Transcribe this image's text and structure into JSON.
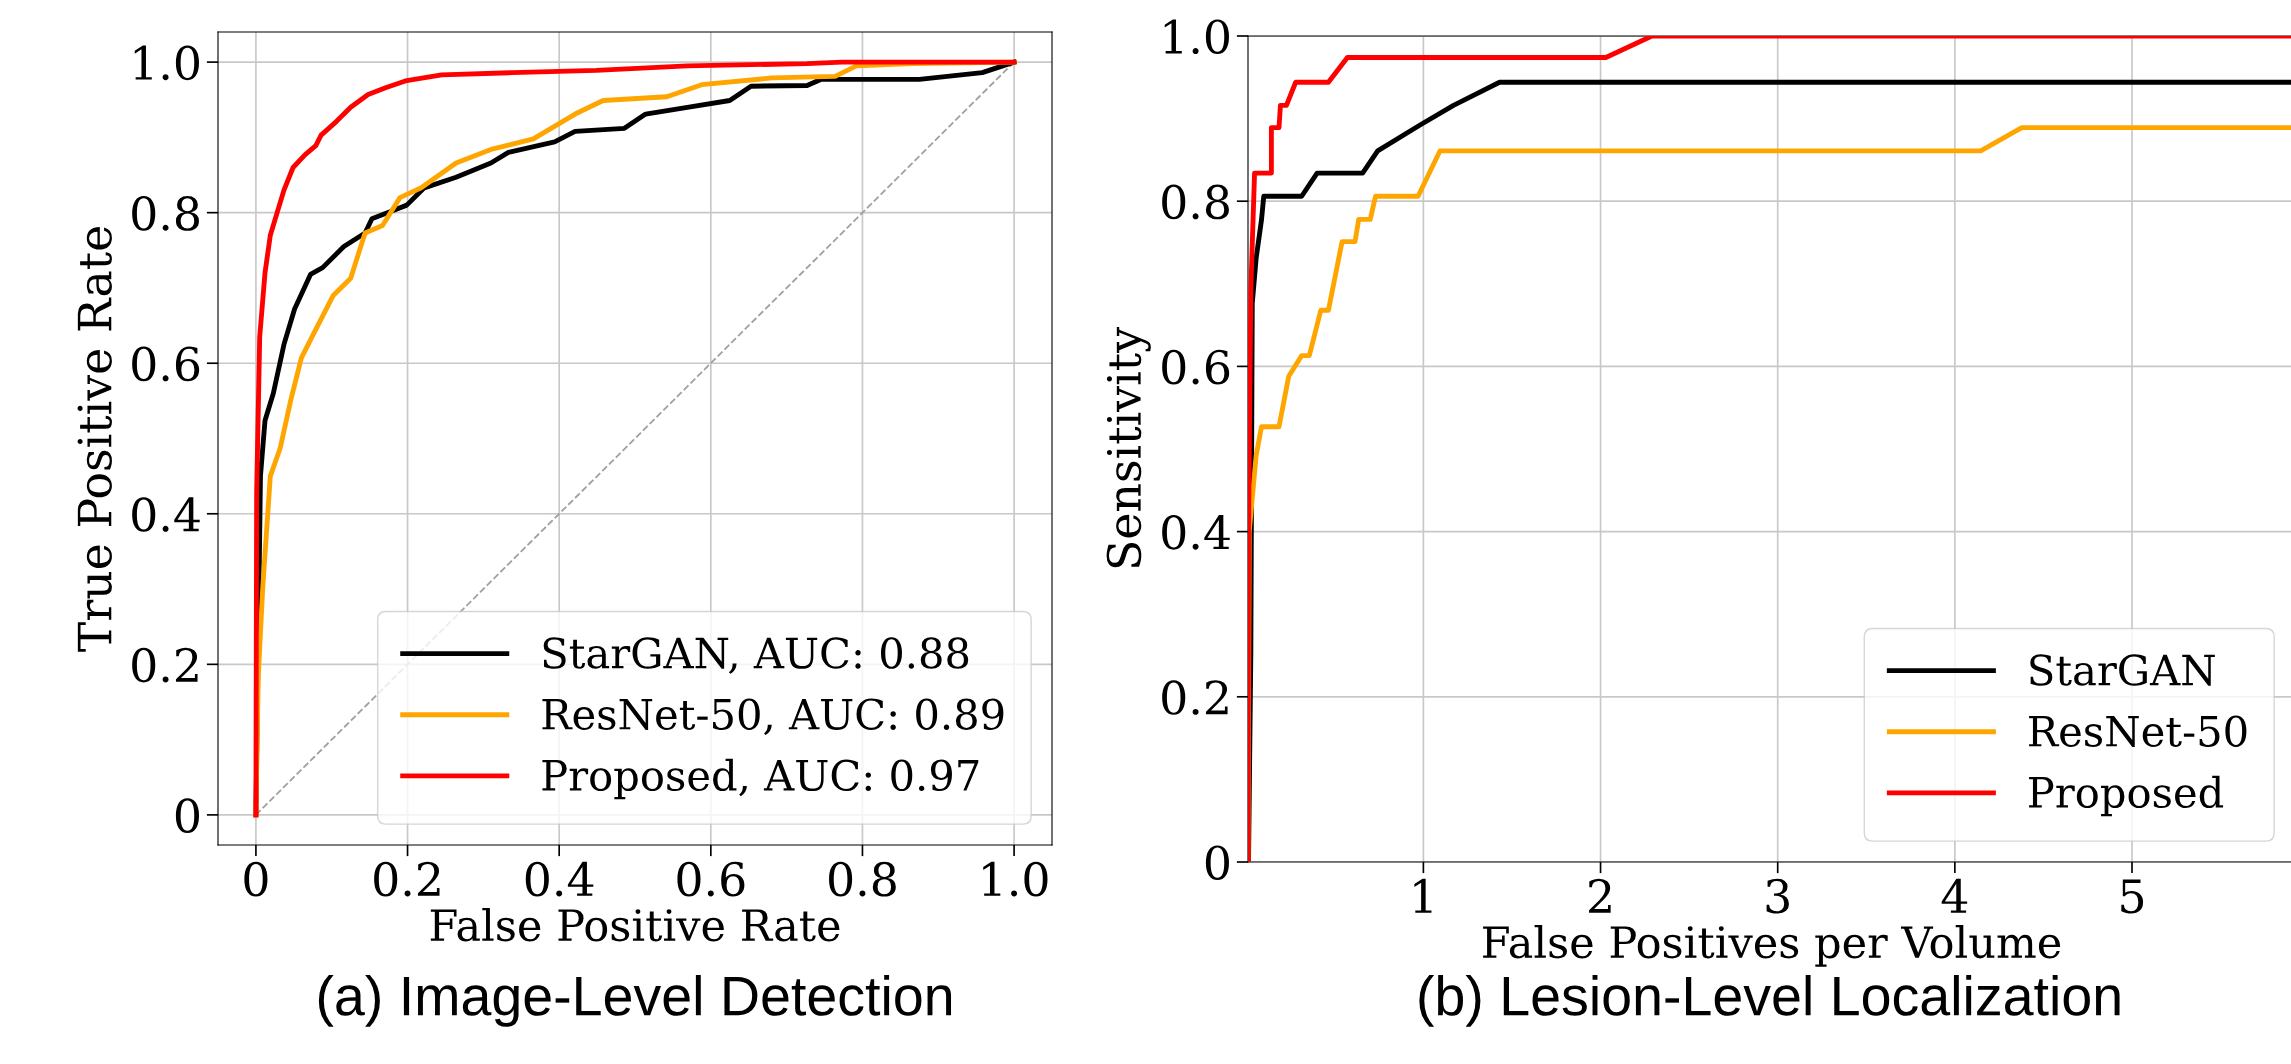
{
  "chart_data": [
    {
      "type": "line",
      "xlabel": "False Positive Rate",
      "ylabel": "True Positive Rate",
      "xlim": [
        -0.05,
        1.05
      ],
      "ylim": [
        -0.04,
        1.04
      ],
      "xticks": [
        0,
        0.2,
        0.4,
        0.6,
        0.8,
        {
          "value": 1,
          "label": "1.0"
        }
      ],
      "yticks": [
        0,
        0.2,
        0.4,
        0.6,
        0.8,
        {
          "value": 1,
          "label": "1.0"
        }
      ],
      "grid": true,
      "legend": "bottom right",
      "annotations": [
        "(a) Image-Level Detection"
      ],
      "series": [
        {
          "name": "StarGAN, AUC: 0.88",
          "color": "#000000",
          "x": [
            0,
            0.006,
            0.012,
            0.023,
            0.037,
            0.051,
            0.072,
            0.088,
            0.116,
            0.144,
            0.153,
            0.176,
            0.199,
            0.222,
            0.264,
            0.31,
            0.333,
            0.394,
            0.421,
            0.486,
            0.514,
            0.569,
            0.625,
            0.653,
            0.727,
            0.745,
            0.875,
            0.958,
            1
          ],
          "values": [
            0,
            0.45,
            0.524,
            0.56,
            0.625,
            0.672,
            0.718,
            0.727,
            0.755,
            0.773,
            0.792,
            0.801,
            0.81,
            0.833,
            0.847,
            0.866,
            0.88,
            0.894,
            0.908,
            0.912,
            0.931,
            0.94,
            0.949,
            0.968,
            0.969,
            0.977,
            0.977,
            0.986,
            1
          ]
        },
        {
          "name": "ResNet-50, AUC: 0.89",
          "color": "#ffa500",
          "x": [
            0,
            0.003,
            0.009,
            0.019,
            0.032,
            0.046,
            0.06,
            0.074,
            0.102,
            0.125,
            0.144,
            0.167,
            0.19,
            0.218,
            0.264,
            0.31,
            0.366,
            0.421,
            0.458,
            0.542,
            0.588,
            0.681,
            0.764,
            0.792,
            0.866,
            1
          ],
          "values": [
            0,
            0.181,
            0.302,
            0.45,
            0.487,
            0.551,
            0.607,
            0.635,
            0.69,
            0.713,
            0.773,
            0.783,
            0.82,
            0.833,
            0.866,
            0.884,
            0.898,
            0.931,
            0.949,
            0.954,
            0.97,
            0.979,
            0.981,
            0.995,
            0.998,
            1
          ]
        },
        {
          "name": "Proposed, AUC: 0.97",
          "color": "#ff0000",
          "x": [
            0,
            0.001,
            0.005,
            0.012,
            0.019,
            0.028,
            0.037,
            0.049,
            0.065,
            0.079,
            0.086,
            0.106,
            0.125,
            0.148,
            0.171,
            0.197,
            0.245,
            0.338,
            0.449,
            0.569,
            0.727,
            0.773,
            1
          ],
          "values": [
            0,
            0.43,
            0.635,
            0.72,
            0.77,
            0.8,
            0.83,
            0.86,
            0.877,
            0.889,
            0.903,
            0.921,
            0.94,
            0.957,
            0.966,
            0.975,
            0.983,
            0.986,
            0.989,
            0.995,
            0.998,
            1,
            1
          ]
        },
        {
          "color": "#a0a0a0",
          "line_style": "dashed",
          "x": [
            0,
            1
          ],
          "values": [
            0,
            1
          ]
        }
      ]
    },
    {
      "type": "line",
      "xlabel": "False Positives per Volume",
      "ylabel": "Sensitivity",
      "xlim": [
        0.01,
        5.92
      ],
      "ylim": [
        0,
        1
      ],
      "xticks": [
        1,
        2,
        3,
        4,
        5
      ],
      "yticks": [
        0,
        0.2,
        0.4,
        0.6,
        0.8,
        {
          "value": 1,
          "label": "1.0"
        }
      ],
      "grid": true,
      "legend": "bottom right",
      "annotations": [
        "(b) Lesion-Level Localization"
      ],
      "series": [
        {
          "name": "StarGAN",
          "color": "#000000",
          "x": [
            0.013,
            0.026,
            0.034,
            0.056,
            0.086,
            0.099,
            0.313,
            0.4,
            0.657,
            0.742,
            0.979,
            1.17,
            1.43,
            5.92
          ],
          "values": [
            0,
            0.253,
            0.676,
            0.731,
            0.777,
            0.806,
            0.806,
            0.834,
            0.834,
            0.861,
            0.892,
            0.916,
            0.944,
            0.944
          ]
        },
        {
          "name": "ResNet-50",
          "color": "#ffa500",
          "x": [
            0.01,
            0.017,
            0.056,
            0.086,
            0.185,
            0.24,
            0.313,
            0.356,
            0.421,
            0.464,
            0.541,
            0.614,
            0.635,
            0.7,
            0.73,
            0.97,
            1.094,
            4.146,
            4.378,
            5.92
          ],
          "values": [
            0,
            0.4,
            0.492,
            0.527,
            0.527,
            0.588,
            0.613,
            0.613,
            0.668,
            0.668,
            0.751,
            0.751,
            0.778,
            0.778,
            0.806,
            0.806,
            0.861,
            0.861,
            0.889,
            0.889
          ]
        },
        {
          "name": "Proposed",
          "color": "#ff0000",
          "x": [
            0.01,
            0.013,
            0.026,
            0.047,
            0.142,
            0.142,
            0.185,
            0.193,
            0.227,
            0.279,
            0.464,
            0.571,
            2.03,
            2.29,
            5.92
          ],
          "values": [
            0,
            0.4,
            0.694,
            0.834,
            0.834,
            0.889,
            0.889,
            0.916,
            0.916,
            0.944,
            0.944,
            0.974,
            0.974,
            1,
            1
          ]
        }
      ]
    }
  ]
}
